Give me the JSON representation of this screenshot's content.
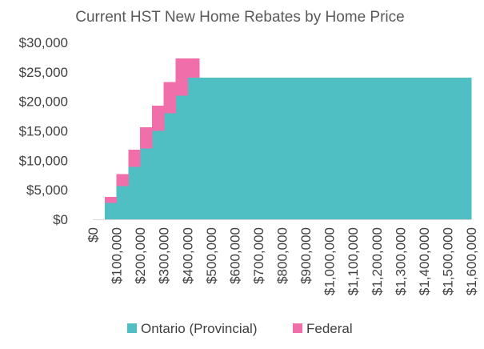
{
  "chart_data": {
    "type": "area",
    "title": "Current HST New Home Rebates by Home Price",
    "xlabel": "",
    "ylabel": "",
    "x_ticks": [
      "$0",
      "$100,000",
      "$200,000",
      "$300,000",
      "$400,000",
      "$500,000",
      "$600,000",
      "$700,000",
      "$800,000",
      "$900,000",
      "$1,000,000",
      "$1,100,000",
      "$1,200,000",
      "$1,300,000",
      "$1,400,000",
      "$1,500,000",
      "$1,600,000"
    ],
    "y_ticks": [
      "$0",
      "$5,000",
      "$10,000",
      "$15,000",
      "$20,000",
      "$25,000",
      "$30,000"
    ],
    "xlim": [
      0,
      1600000
    ],
    "ylim": [
      0,
      30000
    ],
    "grid": false,
    "legend_position": "bottom",
    "stacked": true,
    "step_width": 50000,
    "x": [
      50000,
      100000,
      150000,
      200000,
      250000,
      300000,
      350000,
      400000,
      450000,
      500000,
      550000,
      600000,
      650000,
      700000,
      750000,
      800000,
      850000,
      900000,
      950000,
      1000000,
      1050000,
      1100000,
      1150000,
      1200000,
      1250000,
      1300000,
      1350000,
      1400000,
      1450000,
      1500000,
      1550000
    ],
    "series": [
      {
        "name": "Ontario (Provincial)",
        "color": "#4fbfc3",
        "values": [
          2800,
          5600,
          8900,
          12000,
          15000,
          18000,
          21000,
          24000,
          24000,
          24000,
          24000,
          24000,
          24000,
          24000,
          24000,
          24000,
          24000,
          24000,
          24000,
          24000,
          24000,
          24000,
          24000,
          24000,
          24000,
          24000,
          24000,
          24000,
          24000,
          24000,
          24000
        ]
      },
      {
        "name": "Federal",
        "color": "#f06eaa",
        "values": [
          1000,
          2100,
          2900,
          3600,
          4300,
          5300,
          6300,
          3300,
          0,
          0,
          0,
          0,
          0,
          0,
          0,
          0,
          0,
          0,
          0,
          0,
          0,
          0,
          0,
          0,
          0,
          0,
          0,
          0,
          0,
          0,
          0
        ]
      }
    ]
  }
}
